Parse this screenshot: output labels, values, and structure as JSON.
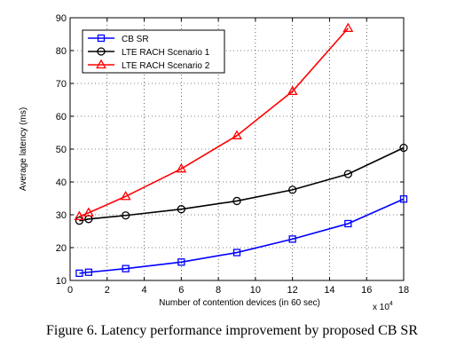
{
  "caption": "Figure 6.  Latency performance improvement by proposed CB SR",
  "chart_data": {
    "type": "line",
    "xlabel": "Number of contention devices (in 60 sec)",
    "ylabel": "Average latency (ms)",
    "x_multiplier": "x 10",
    "x_multiplier_exp": "4",
    "xlim": [
      0,
      18
    ],
    "ylim": [
      10,
      90
    ],
    "xticks": [
      0,
      2,
      4,
      6,
      8,
      10,
      12,
      14,
      16,
      18
    ],
    "yticks": [
      10,
      20,
      30,
      40,
      50,
      60,
      70,
      80,
      90
    ],
    "grid": true,
    "legend_position": "top-left",
    "series": [
      {
        "name": "CB SR",
        "color": "#0000ff",
        "marker": "square",
        "x": [
          0.5,
          1,
          3,
          6,
          9,
          12,
          15,
          18
        ],
        "y": [
          12.2,
          12.5,
          13.6,
          15.6,
          18.5,
          22.6,
          27.3,
          34.8
        ]
      },
      {
        "name": "LTE RACH Scenario 1",
        "color": "#000000",
        "marker": "circle",
        "x": [
          0.5,
          1,
          3,
          6,
          9,
          12,
          15,
          18
        ],
        "y": [
          28.2,
          28.7,
          29.8,
          31.7,
          34.2,
          37.6,
          42.4,
          50.4
        ]
      },
      {
        "name": "LTE RACH Scenario 2",
        "color": "#ff0000",
        "marker": "triangle",
        "x": [
          0.5,
          1,
          3,
          6,
          9,
          12,
          15
        ],
        "y": [
          29.5,
          30.6,
          35.6,
          44.0,
          54.1,
          67.6,
          86.8
        ]
      }
    ]
  }
}
